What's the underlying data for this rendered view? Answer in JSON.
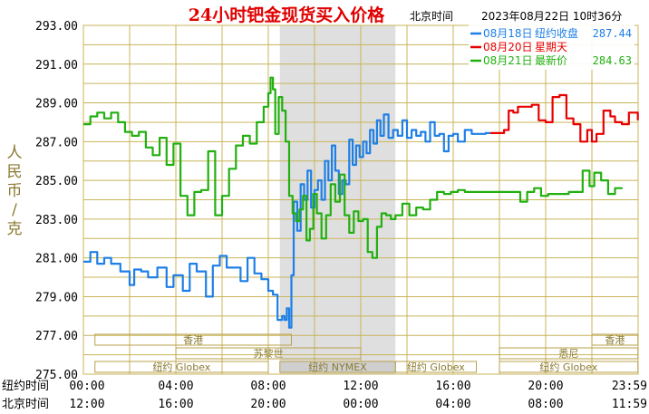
{
  "chart_data": {
    "type": "line",
    "title": "24小时钯金现货买入价格",
    "timezone_label": "北京时间",
    "timestamp": "2023年08月22日 10时36分",
    "ylabel": "人民币/克",
    "ylim": [
      275,
      293
    ],
    "y_ticks": [
      "293.00",
      "291.00",
      "289.00",
      "287.00",
      "285.00",
      "283.00",
      "281.00",
      "279.00",
      "277.00",
      "275.00"
    ],
    "x_rows": [
      {
        "label": "纽约时间",
        "ticks": [
          "00:00",
          "04:00",
          "08:00",
          "12:00",
          "16:00",
          "20:00",
          "23:59"
        ]
      },
      {
        "label": "北京时间",
        "ticks": [
          "12:00",
          "16:00",
          "20:00",
          "00:00",
          "04:00",
          "08:00",
          "11:59"
        ]
      }
    ],
    "legend": [
      {
        "date": "08月18日",
        "text": "纽约收盘",
        "value": "287.44",
        "color": "#1e7fe6"
      },
      {
        "date": "08月20日",
        "text": "星期天",
        "value": "",
        "color": "#e80000"
      },
      {
        "date": "08月21日",
        "text": "最新价",
        "value": "284.63",
        "color": "#22b010"
      }
    ],
    "sessions": [
      {
        "name": "香港",
        "start": 0.5,
        "end": 9,
        "row": 0
      },
      {
        "name": "香港",
        "start": 22,
        "end": 23.99,
        "row": 0
      },
      {
        "name": "苏黎世",
        "start": 4,
        "end": 12,
        "row": 1
      },
      {
        "name": "悉尼",
        "start": 18,
        "end": 23.99,
        "row": 1
      },
      {
        "name": "纽约 Globex",
        "start": 0.5,
        "end": 8,
        "row": 2
      },
      {
        "name": "纽约 NYMEX",
        "start": 8.5,
        "end": 13.5,
        "row": 2,
        "highlight": true
      },
      {
        "name": "纽约 Globex",
        "start": 13.5,
        "end": 17,
        "row": 2
      },
      {
        "name": "纽约 Globex",
        "start": 18,
        "end": 23.99,
        "row": 2
      }
    ],
    "nymex_hours": [
      8.5,
      13.5
    ],
    "series": [
      {
        "name": "08月18日",
        "color": "#1e7fe6",
        "x": [
          0,
          0.3,
          0.6,
          0.9,
          1.2,
          1.6,
          2,
          2.2,
          2.5,
          2.8,
          3.2,
          3.6,
          3.9,
          4.3,
          4.6,
          4.9,
          5.3,
          5.6,
          5.9,
          6.2,
          6.5,
          6.8,
          7.1,
          7.4,
          7.7,
          8,
          8.2,
          8.4,
          8.6,
          8.7,
          8.8,
          8.9,
          9,
          9.1,
          9.25,
          9.4,
          9.55,
          9.7,
          9.85,
          10,
          10.15,
          10.3,
          10.45,
          10.6,
          10.75,
          10.9,
          11.05,
          11.2,
          11.35,
          11.5,
          11.65,
          11.8,
          11.95,
          12.1,
          12.25,
          12.4,
          12.55,
          12.7,
          12.85,
          13,
          13.2,
          13.4,
          13.6,
          13.8,
          14,
          14.2,
          14.4,
          14.6,
          14.8,
          15,
          15.2,
          15.4,
          15.6,
          15.8,
          16,
          16.2,
          16.5,
          16.8,
          17,
          17.2,
          17.4,
          17.6
        ],
        "values": [
          280.8,
          281.3,
          280.7,
          281.0,
          280.7,
          280.3,
          279.6,
          280.4,
          280.3,
          280.0,
          280.5,
          279.5,
          280.1,
          279.3,
          280.7,
          280.3,
          279.0,
          280.6,
          281.1,
          280.5,
          280.5,
          279.8,
          281.0,
          280.2,
          279.9,
          279.3,
          279.1,
          277.8,
          278.0,
          277.8,
          278.4,
          277.4,
          280.1,
          283.9,
          282.4,
          284.8,
          284.0,
          285.5,
          283.6,
          284.5,
          285.0,
          284.0,
          286.0,
          285.0,
          286.8,
          285.5,
          284.3,
          285.0,
          284.8,
          287.1,
          285.8,
          286.8,
          286.2,
          287.0,
          286.4,
          287.6,
          286.9,
          288.1,
          287.3,
          288.4,
          287.2,
          287.6,
          287.3,
          288.1,
          287.2,
          287.6,
          287.3,
          287.5,
          287.0,
          288.0,
          287.3,
          287.4,
          286.5,
          287.3,
          287.4,
          287.0,
          287.6,
          287.4,
          287.4,
          287.4,
          287.44,
          287.44
        ]
      },
      {
        "name": "08月20日",
        "color": "#e80000",
        "x": [
          17.6,
          18,
          18.2,
          18.4,
          18.6,
          18.8,
          19.1,
          19.4,
          19.7,
          20,
          20.3,
          20.6,
          20.9,
          21.2,
          21.5,
          21.8,
          22,
          22.2,
          22.5,
          22.8,
          23,
          23.3,
          23.6,
          23.99
        ],
        "values": [
          287.44,
          287.44,
          287.6,
          288.6,
          288.5,
          288.8,
          288.8,
          288.9,
          288.1,
          288.0,
          289.3,
          289.4,
          288.2,
          287.9,
          287.0,
          287.6,
          287.0,
          287.4,
          288.6,
          288.3,
          288.0,
          287.9,
          288.5,
          288.1
        ]
      },
      {
        "name": "08月21日",
        "color": "#22b010",
        "x": [
          0,
          0.3,
          0.6,
          0.9,
          1.2,
          1.5,
          1.8,
          2.1,
          2.4,
          2.7,
          3,
          3.3,
          3.6,
          3.9,
          4.2,
          4.5,
          4.8,
          5.1,
          5.4,
          5.7,
          6,
          6.3,
          6.6,
          6.9,
          7.2,
          7.5,
          7.8,
          8,
          8.1,
          8.2,
          8.3,
          8.45,
          8.6,
          8.75,
          8.9,
          9.05,
          9.2,
          9.35,
          9.5,
          9.65,
          9.8,
          9.95,
          10.1,
          10.3,
          10.5,
          10.7,
          10.9,
          11.1,
          11.3,
          11.5,
          11.7,
          11.9,
          12.1,
          12.3,
          12.5,
          12.7,
          12.9,
          13.1,
          13.3,
          13.5,
          13.8,
          14.1,
          14.4,
          14.7,
          15,
          15.3,
          15.6,
          15.9,
          16.2,
          16.5,
          16.8,
          17.1,
          17.4,
          17.7,
          18,
          18.3,
          18.6,
          18.9,
          19.2,
          19.5,
          19.8,
          20.1,
          20.4,
          20.7,
          21,
          21.3,
          21.6,
          21.9,
          22.1,
          22.4,
          22.7,
          23,
          23.3
        ],
        "values": [
          287.9,
          288.3,
          288.5,
          288.2,
          288.5,
          288.0,
          287.5,
          287.3,
          287.5,
          286.7,
          286.3,
          287.2,
          285.8,
          286.9,
          284.2,
          283.2,
          284.4,
          284.5,
          286.5,
          283.2,
          284.2,
          285.6,
          286.8,
          287.3,
          286.9,
          288.0,
          288.8,
          289.5,
          290.3,
          289.7,
          287.4,
          289.3,
          288.6,
          287.0,
          284.2,
          283.3,
          282.9,
          283.5,
          284.2,
          281.9,
          282.5,
          284.3,
          283.3,
          282.0,
          283.2,
          284.8,
          283.9,
          285.3,
          283.2,
          282.3,
          283.4,
          282.9,
          283.0,
          281.3,
          281.0,
          282.6,
          283.3,
          283.2,
          283.0,
          283.2,
          283.8,
          283.2,
          283.6,
          283.5,
          284.0,
          284.4,
          284.3,
          284.4,
          284.5,
          284.4,
          284.4,
          284.4,
          284.4,
          284.4,
          284.4,
          284.4,
          284.4,
          283.9,
          284.4,
          284.6,
          284.2,
          284.3,
          284.3,
          284.3,
          284.4,
          284.4,
          285.5,
          284.7,
          285.4,
          285.0,
          284.3,
          284.6,
          284.63
        ]
      }
    ]
  }
}
